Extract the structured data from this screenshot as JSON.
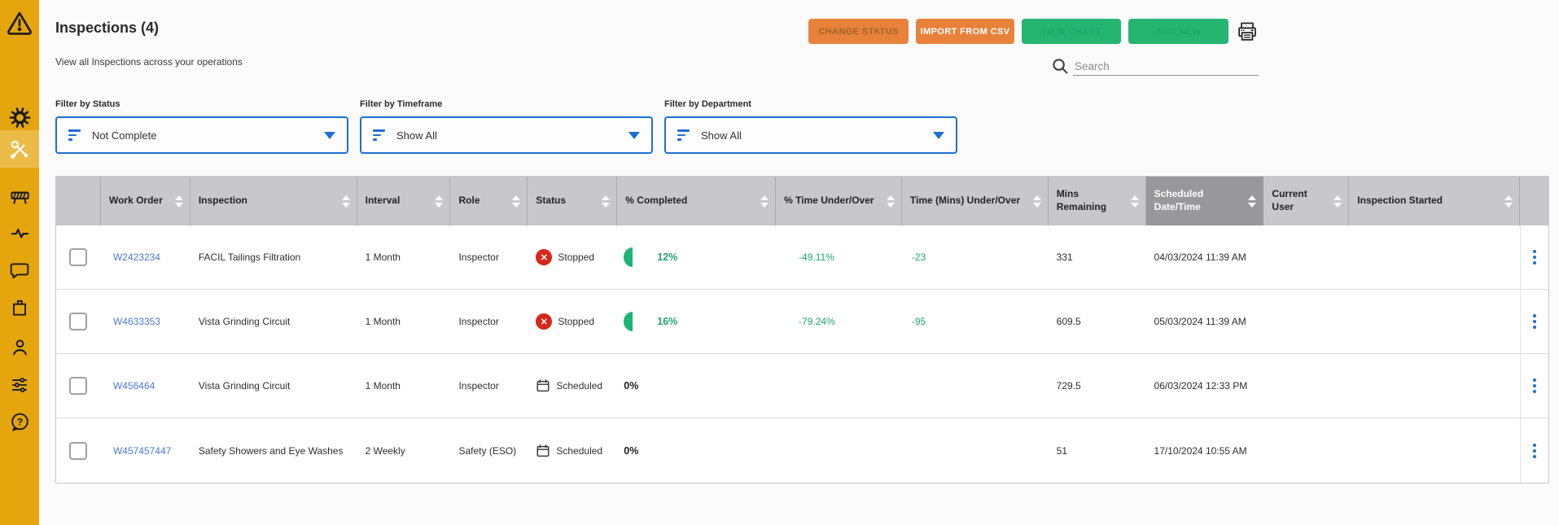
{
  "colors": {
    "sidebar": "#E5A50D",
    "accent_blue": "#1D6FD2",
    "green_text": "#1FA56E",
    "button_green": "#25B571",
    "button_orange": "#E8823B",
    "stopped_red": "#D6271A",
    "header_gray": "#C8C8CC",
    "sorted_column_gray": "#97979C"
  },
  "sidebar": {
    "items": [
      {
        "icon": "alert-triangle-icon"
      },
      {
        "icon": "gear-icon"
      },
      {
        "icon": "tools-icon",
        "active": true
      },
      {
        "icon": "barrier-icon"
      },
      {
        "icon": "activity-icon"
      },
      {
        "icon": "chat-icon"
      },
      {
        "icon": "notes-icon"
      },
      {
        "icon": "user-icon"
      },
      {
        "icon": "sliders-icon"
      },
      {
        "icon": "help-icon"
      }
    ]
  },
  "header": {
    "title": "Inspections (4)",
    "subtitle": "View all Inspections across your operations"
  },
  "toolbar": {
    "change_status": "CHANGE STATUS",
    "import_csv": "IMPORT FROM CSV",
    "view_chart": "VIEW CHART",
    "add_new": "ADD NEW"
  },
  "search": {
    "placeholder": "Search"
  },
  "filters": [
    {
      "label": "Filter by Status",
      "value": "Not Complete"
    },
    {
      "label": "Filter by Timeframe",
      "value": "Show All"
    },
    {
      "label": "Filter by Department",
      "value": "Show All"
    }
  ],
  "table": {
    "columns": [
      "",
      "Work Order",
      "Inspection",
      "Interval",
      "Role",
      "Status",
      "% Completed",
      "% Time Under/Over",
      "Time (Mins) Under/Over",
      "Mins Remaining",
      "Scheduled Date/Time",
      "Current User",
      "Inspection Started"
    ],
    "sorted_column": "Scheduled Date/Time",
    "rows": [
      {
        "work_order": "W2423234",
        "inspection": "FACIL Tailings Filtration",
        "interval": "1 Month",
        "role": "Inspector",
        "status": "Stopped",
        "status_type": "stopped",
        "completed": "12%",
        "completed_positive": true,
        "time_pct": "-49.11%",
        "time_mins": "-23",
        "mins_remaining": "331",
        "scheduled": "04/03/2024 11:39 AM",
        "current_user": "",
        "inspection_started": ""
      },
      {
        "work_order": "W4633353",
        "inspection": "Vista Grinding Circuit",
        "interval": "1 Month",
        "role": "Inspector",
        "status": "Stopped",
        "status_type": "stopped",
        "completed": "16%",
        "completed_positive": true,
        "time_pct": "-79.24%",
        "time_mins": "-95",
        "mins_remaining": "609.5",
        "scheduled": "05/03/2024 11:39 AM",
        "current_user": "",
        "inspection_started": ""
      },
      {
        "work_order": "W456464",
        "inspection": "Vista Grinding Circuit",
        "interval": "1 Month",
        "role": "Inspector",
        "status": "Scheduled",
        "status_type": "scheduled",
        "completed": "0%",
        "completed_positive": false,
        "time_pct": "",
        "time_mins": "",
        "mins_remaining": "729.5",
        "scheduled": "06/03/2024 12:33 PM",
        "current_user": "",
        "inspection_started": ""
      },
      {
        "work_order": "W457457447",
        "inspection": "Safety Showers and Eye Washes",
        "interval": "2 Weekly",
        "role": "Safety (ESO)",
        "status": "Scheduled",
        "status_type": "scheduled",
        "completed": "0%",
        "completed_positive": false,
        "time_pct": "",
        "time_mins": "",
        "mins_remaining": "51",
        "scheduled": "17/10/2024 10:55 AM",
        "current_user": "",
        "inspection_started": ""
      }
    ]
  }
}
